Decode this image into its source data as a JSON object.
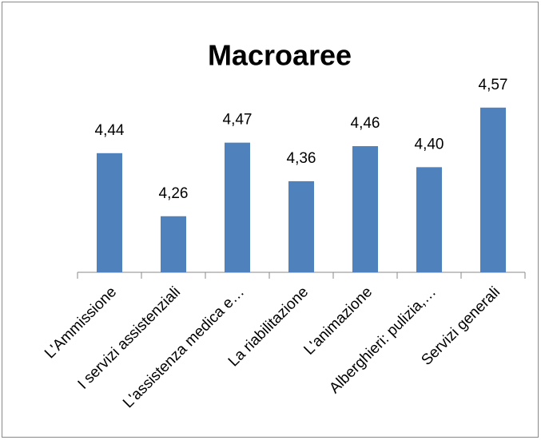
{
  "chart_data": {
    "type": "bar",
    "title": "Macroaree",
    "categories": [
      "L'Ammissione",
      "I servizi assistenziali",
      "L'assistenza medica e…",
      "La riabilitazione",
      "L'animazione",
      "Alberghieri: pulizia,…",
      "Servizi generali"
    ],
    "values": [
      4.44,
      4.26,
      4.47,
      4.36,
      4.46,
      4.4,
      4.57
    ],
    "value_labels": [
      "4,44",
      "4,26",
      "4,47",
      "4,36",
      "4,46",
      "4,40",
      "4,57"
    ],
    "color": "#4f81bd",
    "ylim": [
      4.1,
      4.6
    ]
  }
}
